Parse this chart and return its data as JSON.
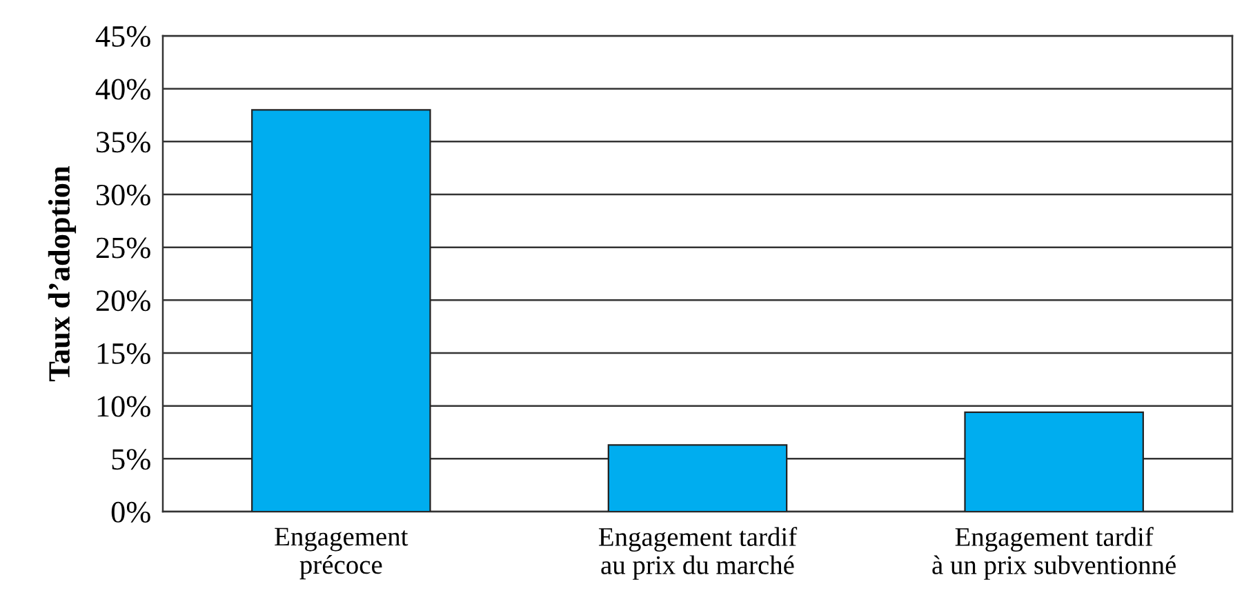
{
  "chart_data": {
    "type": "bar",
    "ylabel": "Taux d’adoption",
    "categories": [
      "Engagement\nprécoce",
      "Engagement tardif\nau prix du marché",
      "Engagement tardif\nà un prix subventionné"
    ],
    "values": [
      38.0,
      6.3,
      9.4
    ],
    "color": "#00adef",
    "ylim": [
      0,
      45
    ],
    "yticks": [
      {
        "value": 0,
        "label": "0%"
      },
      {
        "value": 5,
        "label": "5%"
      },
      {
        "value": 10,
        "label": "10%"
      },
      {
        "value": 15,
        "label": "15%"
      },
      {
        "value": 20,
        "label": "20%"
      },
      {
        "value": 25,
        "label": "25%"
      },
      {
        "value": 30,
        "label": "30%"
      },
      {
        "value": 35,
        "label": "35%"
      },
      {
        "value": 40,
        "label": "40%"
      },
      {
        "value": 45,
        "label": "45%"
      }
    ],
    "grid": "y"
  }
}
